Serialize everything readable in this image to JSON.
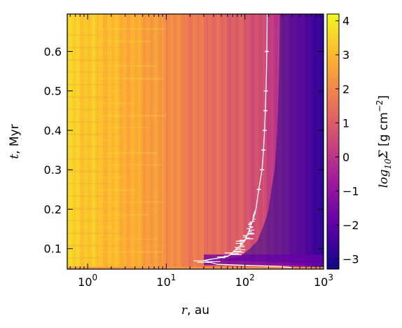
{
  "chart_data": {
    "type": "heatmap",
    "title": "",
    "xlabel": {
      "symbol": "r",
      "unit": ", au"
    },
    "ylabel": {
      "symbol": "t",
      "unit": ", Myr"
    },
    "colorbar_label": {
      "prefix": "log",
      "sub": "10",
      "symbol": "Σ",
      "unit": " [g cm",
      "exp": "−2",
      "close": "]"
    },
    "x_scale": "log",
    "x_range": [
      0.55,
      1000
    ],
    "x_ticks": [
      {
        "value": 1,
        "base": "10",
        "exp": "0"
      },
      {
        "value": 10,
        "base": "10",
        "exp": "1"
      },
      {
        "value": 100,
        "base": "10",
        "exp": "2"
      },
      {
        "value": 1000,
        "base": "10",
        "exp": "3"
      }
    ],
    "y_range": [
      0.048,
      0.695
    ],
    "y_ticks": [
      {
        "value": 0.1,
        "label": "0.1"
      },
      {
        "value": 0.2,
        "label": "0.2"
      },
      {
        "value": 0.3,
        "label": "0.3"
      },
      {
        "value": 0.4,
        "label": "0.4"
      },
      {
        "value": 0.5,
        "label": "0.5"
      },
      {
        "value": 0.6,
        "label": "0.6"
      }
    ],
    "colorbar_range": [
      -3.3,
      4.2
    ],
    "colorbar_ticks": [
      {
        "value": 4,
        "label": "4"
      },
      {
        "value": 3,
        "label": "3"
      },
      {
        "value": 2,
        "label": "2"
      },
      {
        "value": 1,
        "label": "1"
      },
      {
        "value": 0,
        "label": "0"
      },
      {
        "value": -1,
        "label": "−1"
      },
      {
        "value": -2,
        "label": "−2"
      },
      {
        "value": -3,
        "label": "−3"
      }
    ],
    "colormap": "plasma",
    "colormap_stops": [
      "#0d0887",
      "#5c01a6",
      "#9c179e",
      "#cc4778",
      "#ed7953",
      "#fdb42f",
      "#f0f921"
    ],
    "radial_profile": {
      "r": [
        0.55,
        1,
        2,
        4,
        8,
        12,
        20,
        30,
        50,
        100,
        150,
        250,
        400,
        700,
        1000
      ],
      "log_sigma": [
        3.5,
        3.3,
        3.05,
        2.75,
        2.35,
        2.1,
        1.75,
        1.55,
        1.25,
        0.9,
        0.6,
        0.1,
        -0.6,
        -1.7,
        -2.7
      ]
    },
    "disc_edge_line": {
      "color": "#ffffff",
      "t": [
        0.052,
        0.055,
        0.06,
        0.07,
        0.08,
        0.1,
        0.12,
        0.15,
        0.18,
        0.2,
        0.25,
        0.3,
        0.35,
        0.4,
        0.45,
        0.5,
        0.55,
        0.6,
        0.65,
        0.695
      ],
      "r": [
        400,
        260,
        45,
        30,
        60,
        80,
        100,
        115,
        130,
        138,
        150,
        165,
        172,
        178,
        182,
        185,
        188,
        190,
        191,
        192
      ]
    }
  }
}
